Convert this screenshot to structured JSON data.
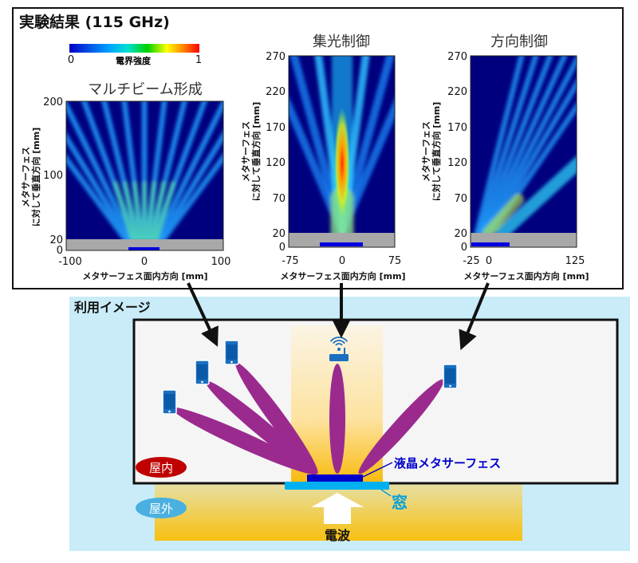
{
  "results": {
    "title": "実験結果 (115 GHz)",
    "colorbar": {
      "min_label": "0",
      "max_label": "1",
      "label": "電界強度",
      "colors": [
        "#0000c8",
        "#00a0ff",
        "#00e0e0",
        "#00d000",
        "#ffff00",
        "#ff8000",
        "#ff0000"
      ]
    },
    "plots": [
      {
        "title": "マルチビーム形成",
        "yticks": [
          "200",
          "100",
          "20",
          "0"
        ],
        "xticks": [
          "-100",
          "0",
          "100"
        ],
        "ylabel_1": "メタサーフェス",
        "ylabel_2": "に対して垂直方向 [mm]",
        "xlabel": "メタサーフェス面内方向 [mm]"
      },
      {
        "title": "集光制御",
        "yticks": [
          "270",
          "220",
          "170",
          "120",
          "70",
          "20",
          "0"
        ],
        "xticks": [
          "-75",
          "0",
          "75"
        ],
        "ylabel_1": "メタサーフェス",
        "ylabel_2": "に対して垂直方向 [mm]",
        "xlabel": "メタサーフェス面内方向 [mm]"
      },
      {
        "title": "方向制御",
        "yticks": [
          "270",
          "220",
          "170",
          "120",
          "70",
          "20",
          "0"
        ],
        "xticks": [
          "-25",
          "0",
          "125"
        ],
        "ylabel_1": "メタサーフェス",
        "ylabel_2": "に対して垂直方向 [mm]",
        "xlabel": "メタサーフェス面内方向 [mm]"
      }
    ]
  },
  "usage": {
    "title": "利用イメージ",
    "indoor": "屋内",
    "outdoor": "屋外",
    "metasurface": "液晶メタサーフェス",
    "window": "窓",
    "radio_wave": "電波",
    "colors": {
      "beam": "#9b2a8f",
      "indoor_badge": "#c00000",
      "outdoor_badge": "#4ab0e0",
      "metasurface": "#0000cc",
      "window": "#00b0f0",
      "device": "#1a6fc0",
      "background": "#c9ecf8"
    },
    "icons": [
      "smartphone-icon",
      "smartphone-icon",
      "smartphone-icon",
      "wifi-router-icon",
      "smartphone-icon"
    ]
  }
}
